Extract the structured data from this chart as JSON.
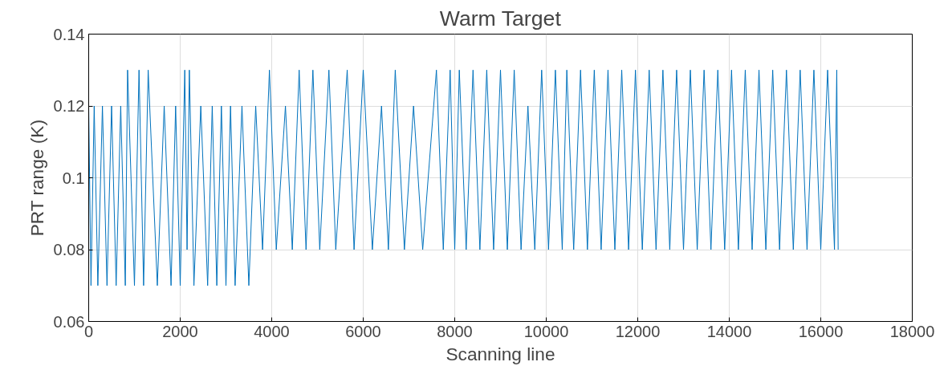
{
  "chart_data": {
    "type": "line",
    "title": "Warm Target",
    "xlabel": "Scanning line",
    "ylabel": "PRT range (K)",
    "xlim": [
      0,
      18000
    ],
    "xticks": [
      0,
      2000,
      4000,
      6000,
      8000,
      10000,
      12000,
      14000,
      16000,
      18000
    ],
    "ylim": [
      0.06,
      0.14
    ],
    "yticks": [
      0.06,
      0.08,
      0.1,
      0.12,
      0.14
    ],
    "grid": true,
    "series": [
      {
        "color": "#0072bd",
        "x": [
          0,
          50,
          120,
          200,
          300,
          400,
          500,
          600,
          700,
          800,
          850,
          1000,
          1100,
          1200,
          1300,
          1500,
          1650,
          1800,
          1900,
          2000,
          2100,
          2150,
          2200,
          2300,
          2450,
          2600,
          2700,
          2800,
          2900,
          3000,
          3100,
          3200,
          3350,
          3500,
          3650,
          3800,
          3950,
          4100,
          4300,
          4450,
          4600,
          4750,
          4900,
          5050,
          5250,
          5400,
          5650,
          5800,
          6000,
          6200,
          6400,
          6550,
          6700,
          6900,
          7100,
          7300,
          7600,
          7750,
          7900,
          8000,
          8100,
          8250,
          8400,
          8550,
          8700,
          8850,
          9000,
          9150,
          9300,
          9450,
          9600,
          9750,
          9900,
          10050,
          10200,
          10350,
          10450,
          10600,
          10750,
          10900,
          11050,
          11200,
          11350,
          11500,
          11650,
          11800,
          11950,
          12100,
          12250,
          12400,
          12550,
          12700,
          12850,
          13000,
          13150,
          13300,
          13450,
          13600,
          13750,
          13900,
          14050,
          14200,
          14350,
          14500,
          14650,
          14800,
          14950,
          15100,
          15250,
          15400,
          15550,
          15700,
          15850,
          16000,
          16150,
          16300,
          16350,
          16380
        ],
        "values": [
          0.12,
          0.07,
          0.12,
          0.07,
          0.12,
          0.07,
          0.12,
          0.07,
          0.12,
          0.07,
          0.13,
          0.07,
          0.13,
          0.07,
          0.13,
          0.07,
          0.12,
          0.07,
          0.12,
          0.07,
          0.13,
          0.08,
          0.13,
          0.07,
          0.12,
          0.07,
          0.12,
          0.07,
          0.12,
          0.07,
          0.12,
          0.07,
          0.12,
          0.07,
          0.12,
          0.08,
          0.13,
          0.08,
          0.12,
          0.08,
          0.13,
          0.08,
          0.13,
          0.08,
          0.13,
          0.08,
          0.13,
          0.08,
          0.13,
          0.08,
          0.12,
          0.08,
          0.13,
          0.08,
          0.12,
          0.08,
          0.13,
          0.08,
          0.13,
          0.08,
          0.13,
          0.08,
          0.13,
          0.08,
          0.13,
          0.08,
          0.13,
          0.08,
          0.13,
          0.08,
          0.12,
          0.08,
          0.13,
          0.08,
          0.13,
          0.08,
          0.13,
          0.08,
          0.13,
          0.08,
          0.13,
          0.08,
          0.13,
          0.08,
          0.13,
          0.08,
          0.13,
          0.08,
          0.13,
          0.08,
          0.13,
          0.08,
          0.13,
          0.08,
          0.13,
          0.08,
          0.13,
          0.08,
          0.13,
          0.08,
          0.13,
          0.08,
          0.13,
          0.08,
          0.13,
          0.08,
          0.13,
          0.08,
          0.13,
          0.08,
          0.13,
          0.08,
          0.13,
          0.08,
          0.13,
          0.08,
          0.13,
          0.08
        ]
      }
    ]
  }
}
